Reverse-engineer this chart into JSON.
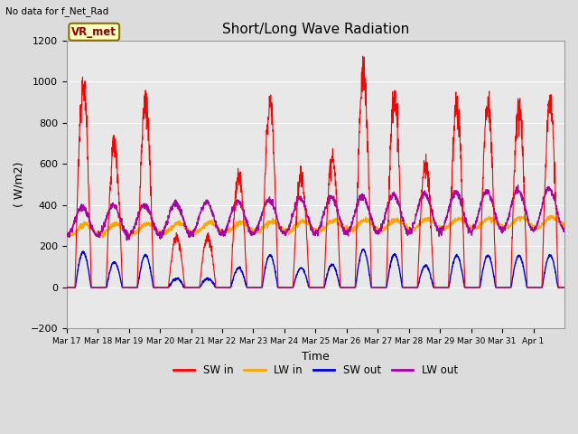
{
  "title": "Short/Long Wave Radiation",
  "xlabel": "Time",
  "ylabel": "( W/m2)",
  "top_left_text": "No data for f_Net_Rad",
  "legend_label_text": "VR_met",
  "ylim": [
    -200,
    1200
  ],
  "yticks": [
    -200,
    0,
    200,
    400,
    600,
    800,
    1000,
    1200
  ],
  "series_colors": {
    "SW_in": "#FF0000",
    "LW_in": "#FFA500",
    "SW_out": "#0000DD",
    "LW_out": "#AA00AA"
  },
  "legend_entries": [
    "SW in",
    "LW in",
    "SW out",
    "LW out"
  ],
  "legend_colors": [
    "#FF0000",
    "#FFA500",
    "#0000DD",
    "#AA00AA"
  ],
  "date_labels": [
    "Mar 17",
    "Mar 18",
    "Mar 19",
    "Mar 20",
    "Mar 21",
    "Mar 22",
    "Mar 23",
    "Mar 24",
    "Mar 25",
    "Mar 26",
    "Mar 27",
    "Mar 28",
    "Mar 29",
    "Mar 30",
    "Mar 31",
    "Apr 1"
  ],
  "figure_bg_color": "#DCDCDC",
  "plot_bg_color": "#E8E8E8",
  "grid_color": "#FFFFFF",
  "n_days": 16,
  "pts_per_day": 144,
  "sw_in_peaks": [
    980,
    700,
    900,
    245,
    245,
    545,
    900,
    540,
    640,
    1050,
    920,
    600,
    880,
    890,
    890,
    890
  ],
  "lw_in_base": 280,
  "lw_out_base": 320
}
